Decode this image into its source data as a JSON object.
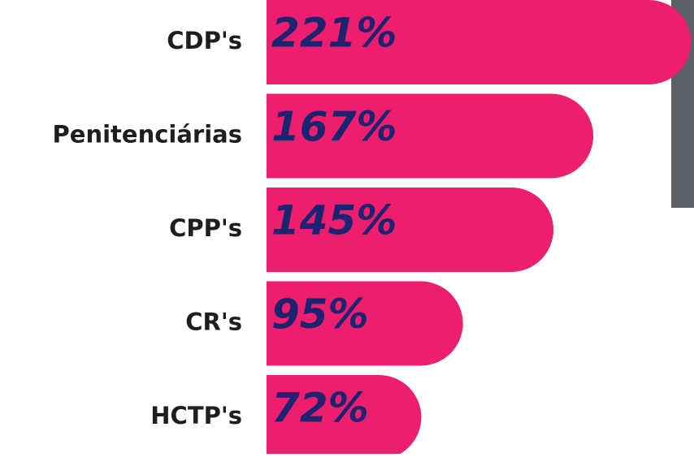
{
  "chart_data": {
    "type": "bar",
    "orientation": "horizontal",
    "color": "#ee1e6f",
    "categories": [
      "CDP's",
      "Penitenciárias",
      "CPP's",
      "CR's",
      "HCTP's"
    ],
    "values": [
      221,
      167,
      145,
      95,
      72
    ],
    "value_labels": [
      "221%",
      "167%",
      "145%",
      "95%",
      "72%"
    ]
  }
}
